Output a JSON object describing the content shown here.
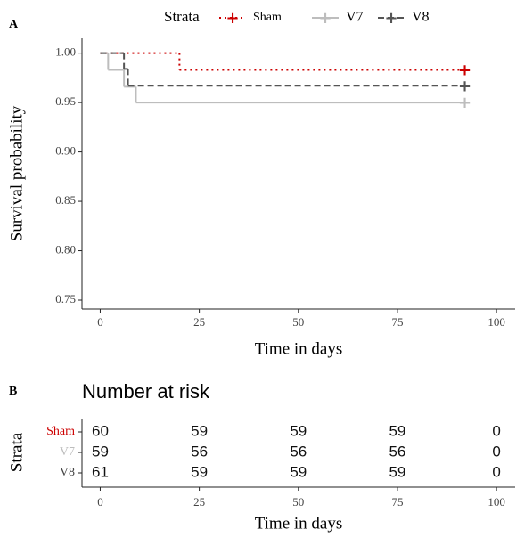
{
  "chart_data": [
    {
      "type": "step",
      "panel_label": "A",
      "legend_title": "Strata",
      "xlabel": "Time in days",
      "ylabel": "Survival probability",
      "xlim": [
        -4.6,
        104.7
      ],
      "xticks": [
        0,
        25,
        50,
        75,
        100
      ],
      "ylim": [
        0.741,
        1.015
      ],
      "yticks": [
        {
          "value": 0.75,
          "label": "0.75"
        },
        {
          "value": 0.8,
          "label": "0.80"
        },
        {
          "value": 0.85,
          "label": "0.85"
        },
        {
          "value": 0.9,
          "label": "0.90"
        },
        {
          "value": 0.95,
          "label": "0.95"
        },
        {
          "value": 1,
          "label": "1.00"
        }
      ],
      "marker": "+",
      "series": [
        {
          "name": "Sham",
          "color": "#cc0000",
          "dash": "dotted",
          "x": [
            0,
            20,
            92
          ],
          "values": [
            1,
            0.983,
            0.983
          ]
        },
        {
          "name": "V7",
          "color": "#bdbdbd",
          "dash": "solid",
          "x": [
            0,
            2,
            6,
            9,
            92
          ],
          "values": [
            1,
            0.983,
            0.966,
            0.95,
            0.95
          ]
        },
        {
          "name": "V8",
          "color": "#555555",
          "dash": "dashed",
          "x": [
            0,
            6,
            7,
            92
          ],
          "values": [
            1,
            0.984,
            0.967,
            0.967
          ]
        }
      ]
    },
    {
      "type": "risk-table",
      "panel_label": "B",
      "title": "Number at risk",
      "xlabel": "Time in days",
      "ylabel": "Strata",
      "xlim": [
        -4.6,
        104.7
      ],
      "xticks": [
        0,
        25,
        50,
        75,
        100
      ],
      "x": [
        0,
        25,
        50,
        75,
        100
      ],
      "series": [
        {
          "name": "Sham",
          "color": "#cc0000",
          "values": [
            60,
            59,
            59,
            59,
            0
          ]
        },
        {
          "name": "V7",
          "color": "#bdbdbd",
          "values": [
            59,
            56,
            56,
            56,
            0
          ]
        },
        {
          "name": "V8",
          "color": "#444444",
          "values": [
            61,
            59,
            59,
            59,
            0
          ]
        }
      ]
    }
  ]
}
